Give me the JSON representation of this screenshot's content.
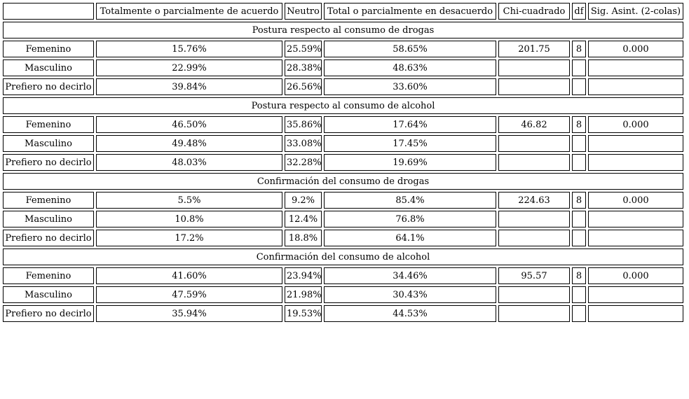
{
  "chart_data": {
    "type": "table",
    "title": "",
    "columns": [
      "",
      "Totalmente o parcialmente de acuerdo",
      "Neutro",
      "Total o parcialmente en desacuerdo",
      "Chi-cuadrado",
      "df",
      "Sig. Asint. (2-colas)"
    ],
    "column_keys": [
      "row_label",
      "agree",
      "neutro",
      "disagree",
      "chi_square",
      "df",
      "sig"
    ],
    "sections": [
      {
        "title": "Postura respecto al consumo de drogas",
        "rows": [
          [
            "Femenino",
            "15.76%",
            "25.59%",
            "58.65%",
            "201.75",
            "8",
            "0.000"
          ],
          [
            "Masculino",
            "22.99%",
            "28.38%",
            "48.63%",
            "",
            "",
            ""
          ],
          [
            "Prefiero no decirlo",
            "39.84%",
            "26.56%",
            "33.60%",
            "",
            "",
            ""
          ]
        ]
      },
      {
        "title": "Postura respecto al consumo de alcohol",
        "rows": [
          [
            "Femenino",
            "46.50%",
            "35.86%",
            "17.64%",
            "46.82",
            "8",
            "0.000"
          ],
          [
            "Masculino",
            "49.48%",
            "33.08%",
            "17.45%",
            "",
            "",
            ""
          ],
          [
            "Prefiero no decirlo",
            "48.03%",
            "32.28%",
            "19.69%",
            "",
            "",
            ""
          ]
        ]
      },
      {
        "title": "Confirmación del consumo de drogas",
        "rows": [
          [
            "Femenino",
            "5.5%",
            "9.2%",
            "85.4%",
            "224.63",
            "8",
            "0.000"
          ],
          [
            "Masculino",
            "10.8%",
            "12.4%",
            "76.8%",
            "",
            "",
            ""
          ],
          [
            "Prefiero no decirlo",
            "17.2%",
            "18.8%",
            "64.1%",
            "",
            "",
            ""
          ]
        ]
      },
      {
        "title": "Confirmación del consumo de alcohol",
        "rows": [
          [
            "Femenino",
            "41.60%",
            "23.94%",
            "34.46%",
            "95.57",
            "8",
            "0.000"
          ],
          [
            "Masculino",
            "47.59%",
            "21.98%",
            "30.43%",
            "",
            "",
            ""
          ],
          [
            "Prefiero no decirlo",
            "35.94%",
            "19.53%",
            "44.53%",
            "",
            "",
            ""
          ]
        ]
      }
    ],
    "layout": {
      "grid": "bordered-cells",
      "legend": "none",
      "section_title_span": "full-width"
    },
    "colors": {
      "border": "#000000",
      "background": "#ffffff",
      "text": "#000000"
    }
  }
}
